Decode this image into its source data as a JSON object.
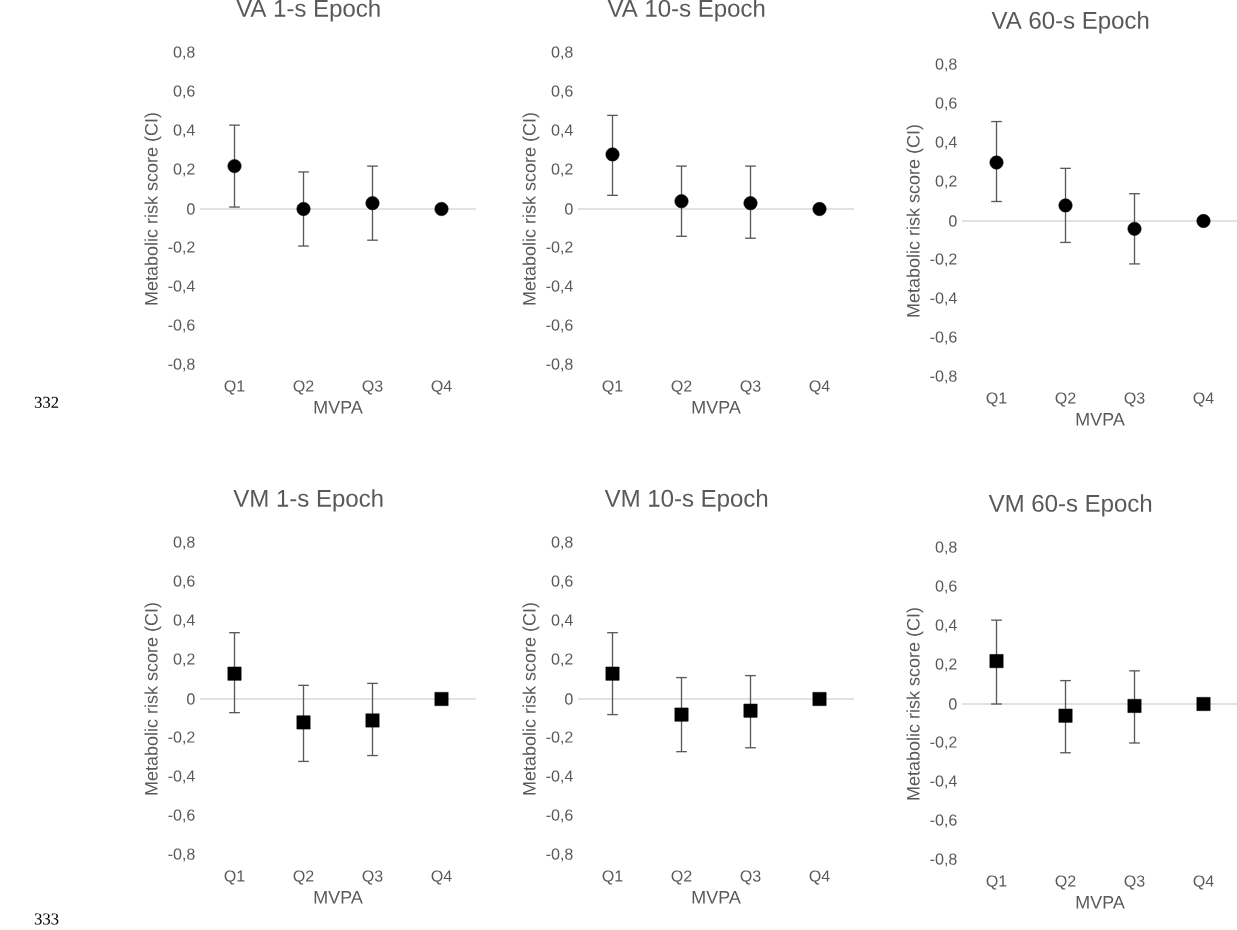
{
  "chart_data": [
    {
      "type": "scatter",
      "title": "VA 1-s Epoch",
      "xlabel": "MVPA",
      "ylabel": "Metabolic risk score (CI)",
      "categories": [
        "Q1",
        "Q2",
        "Q3",
        "Q4"
      ],
      "values": [
        0.22,
        0.0,
        0.03,
        0.0
      ],
      "errors": [
        [
          0.01,
          0.43
        ],
        [
          -0.19,
          0.19
        ],
        [
          -0.16,
          0.22
        ],
        null
      ],
      "color": "#000000",
      "marker": "circle",
      "ylim": [
        -0.8,
        0.8
      ],
      "yticks": [
        {
          "value": -0.8,
          "label": "-0,8"
        },
        {
          "value": -0.6,
          "label": "-0,6"
        },
        {
          "value": -0.4,
          "label": "-0,4"
        },
        {
          "value": -0.2,
          "label": "-0,2"
        },
        0,
        {
          "value": 0.2,
          "label": "0,2"
        },
        {
          "value": 0.4,
          "label": "0,4"
        },
        {
          "value": 0.6,
          "label": "0,6"
        },
        {
          "value": 0.8,
          "label": "0,8"
        }
      ],
      "annotations": [
        "332"
      ]
    },
    {
      "type": "scatter",
      "title": "VA 10-s Epoch",
      "xlabel": "MVPA",
      "ylabel": "Metabolic risk score (CI)",
      "categories": [
        "Q1",
        "Q2",
        "Q3",
        "Q4"
      ],
      "values": [
        0.28,
        0.04,
        0.03,
        0.0
      ],
      "errors": [
        [
          0.07,
          0.48
        ],
        [
          -0.14,
          0.22
        ],
        [
          -0.15,
          0.22
        ],
        null
      ],
      "color": "#000000",
      "marker": "circle",
      "ylim": [
        -0.8,
        0.8
      ],
      "yticks": [
        {
          "value": -0.8,
          "label": "-0,8"
        },
        {
          "value": -0.6,
          "label": "-0,6"
        },
        {
          "value": -0.4,
          "label": "-0,4"
        },
        {
          "value": -0.2,
          "label": "-0,2"
        },
        0,
        {
          "value": 0.2,
          "label": "0,2"
        },
        {
          "value": 0.4,
          "label": "0,4"
        },
        {
          "value": 0.6,
          "label": "0,6"
        },
        {
          "value": 0.8,
          "label": "0,8"
        }
      ]
    },
    {
      "type": "scatter",
      "title": "VA 60-s Epoch",
      "xlabel": "MVPA",
      "ylabel": "Metabolic risk score (CI)",
      "categories": [
        "Q1",
        "Q2",
        "Q3",
        "Q4"
      ],
      "values": [
        0.3,
        0.08,
        -0.04,
        0.0
      ],
      "errors": [
        [
          0.1,
          0.51
        ],
        [
          -0.11,
          0.27
        ],
        [
          -0.22,
          0.14
        ],
        null
      ],
      "color": "#000000",
      "marker": "circle",
      "ylim": [
        -0.8,
        0.8
      ],
      "yticks": [
        {
          "value": -0.8,
          "label": "-0,8"
        },
        {
          "value": -0.6,
          "label": "-0,6"
        },
        {
          "value": -0.4,
          "label": "-0,4"
        },
        {
          "value": -0.2,
          "label": "-0,2"
        },
        0,
        {
          "value": 0.2,
          "label": "0,2"
        },
        {
          "value": 0.4,
          "label": "0,4"
        },
        {
          "value": 0.6,
          "label": "0,6"
        },
        {
          "value": 0.8,
          "label": "0,8"
        }
      ]
    },
    {
      "type": "scatter",
      "title": "VM 1-s Epoch",
      "xlabel": "MVPA",
      "ylabel": "Metabolic risk score (CI)",
      "categories": [
        "Q1",
        "Q2",
        "Q3",
        "Q4"
      ],
      "values": [
        0.13,
        -0.12,
        -0.11,
        0.0
      ],
      "errors": [
        [
          -0.07,
          0.34
        ],
        [
          -0.32,
          0.07
        ],
        [
          -0.29,
          0.08
        ],
        null
      ],
      "color": "#000000",
      "marker": "square",
      "ylim": [
        -0.8,
        0.8
      ],
      "yticks": [
        {
          "value": -0.8,
          "label": "-0,8"
        },
        {
          "value": -0.6,
          "label": "-0,6"
        },
        {
          "value": -0.4,
          "label": "-0,4"
        },
        {
          "value": -0.2,
          "label": "-0,2"
        },
        0,
        {
          "value": 0.2,
          "label": "0,2"
        },
        {
          "value": 0.4,
          "label": "0,4"
        },
        {
          "value": 0.6,
          "label": "0,6"
        },
        {
          "value": 0.8,
          "label": "0,8"
        }
      ],
      "annotations": [
        "333"
      ]
    },
    {
      "type": "scatter",
      "title": "VM 10-s Epoch",
      "xlabel": "MVPA",
      "ylabel": "Metabolic risk score (CI)",
      "categories": [
        "Q1",
        "Q2",
        "Q3",
        "Q4"
      ],
      "values": [
        0.13,
        -0.08,
        -0.06,
        0.0
      ],
      "errors": [
        [
          -0.08,
          0.34
        ],
        [
          -0.27,
          0.11
        ],
        [
          -0.25,
          0.12
        ],
        null
      ],
      "color": "#000000",
      "marker": "square",
      "ylim": [
        -0.8,
        0.8
      ],
      "yticks": [
        {
          "value": -0.8,
          "label": "-0,8"
        },
        {
          "value": -0.6,
          "label": "-0,6"
        },
        {
          "value": -0.4,
          "label": "-0,4"
        },
        {
          "value": -0.2,
          "label": "-0,2"
        },
        0,
        {
          "value": 0.2,
          "label": "0,2"
        },
        {
          "value": 0.4,
          "label": "0,4"
        },
        {
          "value": 0.6,
          "label": "0,6"
        },
        {
          "value": 0.8,
          "label": "0,8"
        }
      ]
    },
    {
      "type": "scatter",
      "title": "VM 60-s Epoch",
      "xlabel": "MVPA",
      "ylabel": "Metabolic risk score (CI)",
      "categories": [
        "Q1",
        "Q2",
        "Q3",
        "Q4"
      ],
      "values": [
        0.22,
        -0.06,
        -0.01,
        0.0
      ],
      "errors": [
        [
          0.0,
          0.43
        ],
        [
          -0.25,
          0.12
        ],
        [
          -0.2,
          0.17
        ],
        null
      ],
      "color": "#000000",
      "marker": "square",
      "ylim": [
        -0.8,
        0.8
      ],
      "yticks": [
        {
          "value": -0.8,
          "label": "-0,8"
        },
        {
          "value": -0.6,
          "label": "-0,6"
        },
        {
          "value": -0.4,
          "label": "-0,4"
        },
        {
          "value": -0.2,
          "label": "-0,2"
        },
        0,
        {
          "value": 0.2,
          "label": "0,2"
        },
        {
          "value": 0.4,
          "label": "0,4"
        },
        {
          "value": 0.6,
          "label": "0,6"
        },
        {
          "value": 0.8,
          "label": "0,8"
        }
      ]
    }
  ]
}
